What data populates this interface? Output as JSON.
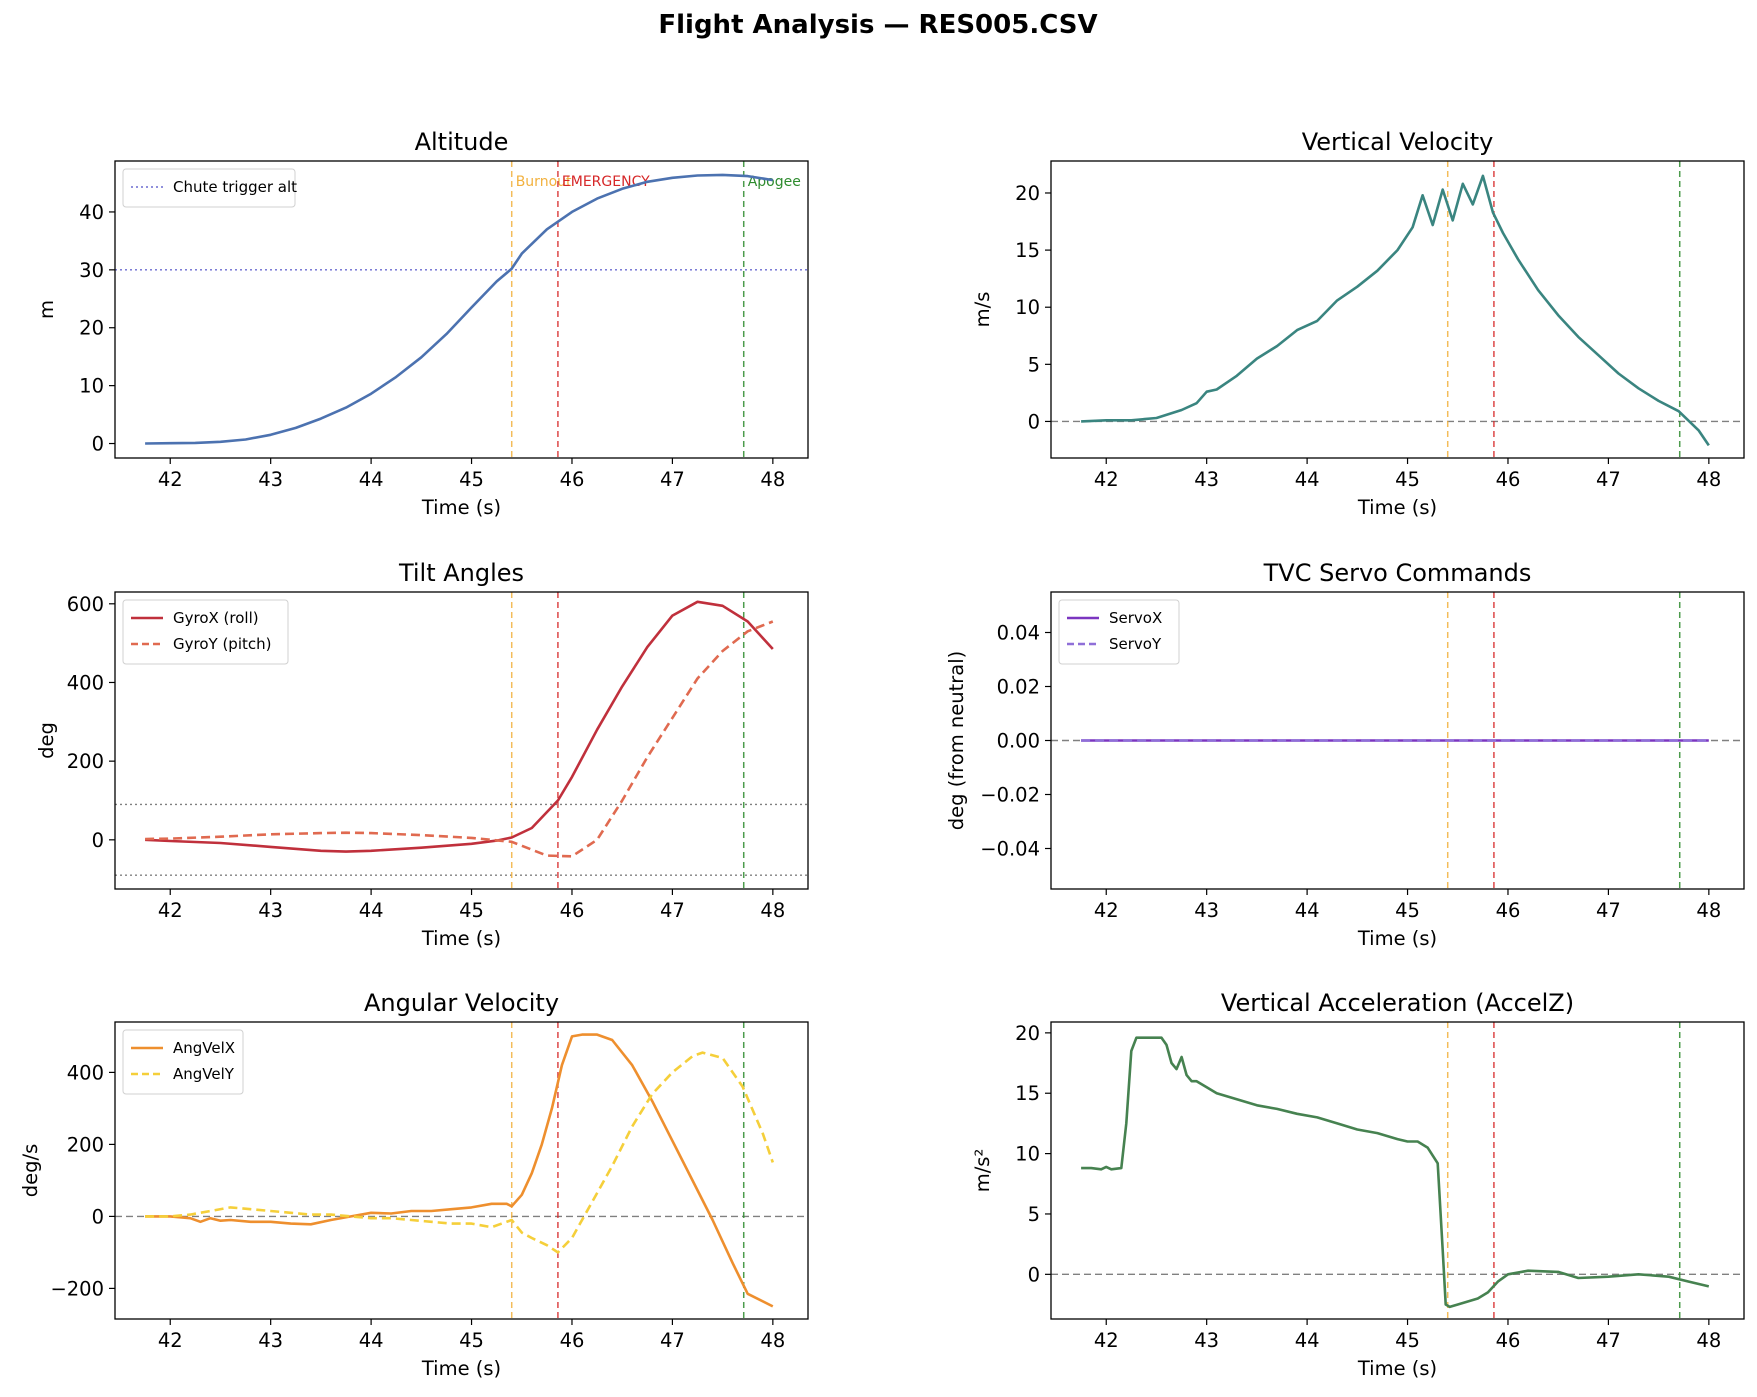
{
  "figure": {
    "suptitle": "Flight Analysis — RES005.CSV"
  },
  "chart_data": [
    {
      "type": "line",
      "title": "Altitude",
      "xlabel": "Time (s)",
      "ylabel": "m",
      "xlim": [
        41.45,
        48.35
      ],
      "ylim": [
        -2.5,
        48.8
      ],
      "xticks": [
        42,
        43,
        44,
        45,
        46,
        47,
        48
      ],
      "yticks": [
        0,
        10,
        20,
        30,
        40
      ],
      "grid": false,
      "legend": {
        "placement": "upper-left",
        "entries": [
          {
            "label": "Chute trigger alt",
            "color": "#6b6bd0",
            "style": "dotted"
          }
        ]
      },
      "hlines": [
        {
          "y": 30,
          "color": "#6b6bd0",
          "style": "dotted"
        }
      ],
      "vlines": [
        {
          "x": 45.4,
          "color": "#f2b13e",
          "label": "Burnout"
        },
        {
          "x": 45.86,
          "color": "#d62728",
          "label": "EMERGENCY"
        },
        {
          "x": 47.71,
          "color": "#2e8b2e",
          "label": "Apogee"
        }
      ],
      "series": [
        {
          "color": "#4c72b0",
          "style": "solid",
          "x": [
            41.75,
            42.0,
            42.25,
            42.5,
            42.75,
            43.0,
            43.25,
            43.5,
            43.75,
            44.0,
            44.25,
            44.5,
            44.75,
            45.0,
            45.25,
            45.4,
            45.5,
            45.75,
            46.0,
            46.25,
            46.5,
            46.75,
            47.0,
            47.25,
            47.5,
            47.75,
            48.0
          ],
          "y": [
            0,
            0.05,
            0.1,
            0.3,
            0.7,
            1.5,
            2.7,
            4.3,
            6.2,
            8.6,
            11.5,
            14.9,
            18.9,
            23.5,
            28.0,
            30.2,
            32.8,
            37.0,
            40.0,
            42.3,
            44.0,
            45.2,
            45.9,
            46.3,
            46.4,
            46.2,
            45.5
          ]
        }
      ]
    },
    {
      "type": "line",
      "title": "Vertical Velocity",
      "xlabel": "Time (s)",
      "ylabel": "m/s",
      "xlim": [
        41.45,
        48.35
      ],
      "ylim": [
        -3.2,
        22.8
      ],
      "xticks": [
        42,
        43,
        44,
        45,
        46,
        47,
        48
      ],
      "yticks": [
        0,
        5,
        10,
        15,
        20
      ],
      "grid": false,
      "hlines": [
        {
          "y": 0,
          "color": "#808080",
          "style": "dashed"
        }
      ],
      "vlines": [
        {
          "x": 45.4,
          "color": "#f2b13e"
        },
        {
          "x": 45.86,
          "color": "#d62728"
        },
        {
          "x": 47.71,
          "color": "#2e8b2e"
        }
      ],
      "series": [
        {
          "color": "#3a8580",
          "style": "solid",
          "x": [
            41.75,
            42.0,
            42.25,
            42.5,
            42.75,
            42.9,
            43.0,
            43.1,
            43.3,
            43.5,
            43.7,
            43.9,
            44.1,
            44.3,
            44.5,
            44.7,
            44.9,
            45.05,
            45.15,
            45.25,
            45.35,
            45.45,
            45.55,
            45.65,
            45.75,
            45.85,
            45.95,
            46.1,
            46.3,
            46.5,
            46.7,
            46.9,
            47.1,
            47.3,
            47.5,
            47.7,
            47.9,
            48.0
          ],
          "y": [
            0,
            0.1,
            0.1,
            0.3,
            1.0,
            1.6,
            2.6,
            2.8,
            4.0,
            5.5,
            6.6,
            8.0,
            8.8,
            10.6,
            11.8,
            13.2,
            15.0,
            17.0,
            19.8,
            17.2,
            20.3,
            17.6,
            20.8,
            19.0,
            21.5,
            18.3,
            16.5,
            14.2,
            11.5,
            9.3,
            7.4,
            5.8,
            4.2,
            2.9,
            1.8,
            0.9,
            -0.8,
            -2.1
          ]
        }
      ]
    },
    {
      "type": "line",
      "title": "Tilt Angles",
      "xlabel": "Time (s)",
      "ylabel": "deg",
      "xlim": [
        41.45,
        48.35
      ],
      "ylim": [
        -125,
        630
      ],
      "xticks": [
        42,
        43,
        44,
        45,
        46,
        47,
        48
      ],
      "yticks": [
        0,
        200,
        400,
        600
      ],
      "grid": false,
      "legend": {
        "placement": "upper-left",
        "entries": [
          {
            "label": "GyroX (roll)",
            "color": "#c0303c",
            "style": "solid"
          },
          {
            "label": "GyroY (pitch)",
            "color": "#e06a50",
            "style": "dashed"
          }
        ]
      },
      "hlines": [
        {
          "y": 90,
          "color": "#808080",
          "style": "dotted"
        },
        {
          "y": -90,
          "color": "#808080",
          "style": "dotted"
        }
      ],
      "vlines": [
        {
          "x": 45.4,
          "color": "#f2b13e"
        },
        {
          "x": 45.86,
          "color": "#d62728"
        },
        {
          "x": 47.71,
          "color": "#2e8b2e"
        }
      ],
      "series": [
        {
          "name": "GyroX (roll)",
          "color": "#c0303c",
          "style": "solid",
          "x": [
            41.75,
            42.0,
            42.5,
            43.0,
            43.5,
            43.75,
            44.0,
            44.5,
            45.0,
            45.25,
            45.4,
            45.6,
            45.86,
            46.0,
            46.25,
            46.5,
            46.75,
            47.0,
            47.25,
            47.5,
            47.75,
            48.0
          ],
          "y": [
            0,
            -3,
            -8,
            -18,
            -28,
            -30,
            -28,
            -20,
            -10,
            -2,
            6,
            30,
            100,
            160,
            280,
            390,
            490,
            570,
            605,
            595,
            555,
            485
          ]
        },
        {
          "name": "GyroY (pitch)",
          "color": "#e06a50",
          "style": "dashed",
          "x": [
            41.75,
            42.0,
            42.5,
            43.0,
            43.5,
            43.75,
            44.0,
            44.5,
            45.0,
            45.4,
            45.75,
            46.0,
            46.25,
            46.5,
            46.75,
            47.0,
            47.25,
            47.5,
            47.75,
            48.0
          ],
          "y": [
            2,
            3,
            8,
            14,
            17,
            18,
            17,
            12,
            5,
            -5,
            -40,
            -42,
            0,
            100,
            210,
            310,
            410,
            480,
            530,
            555
          ]
        }
      ]
    },
    {
      "type": "line",
      "title": "TVC Servo Commands",
      "xlabel": "Time (s)",
      "ylabel": "deg (from neutral)",
      "xlim": [
        41.45,
        48.35
      ],
      "ylim": [
        -0.055,
        0.055
      ],
      "xticks": [
        42,
        43,
        44,
        45,
        46,
        47,
        48
      ],
      "yticks": [
        0.04,
        0.02,
        0.0,
        -0.02,
        -0.04
      ],
      "ytick_labels": [
        "0.04",
        "0.02",
        "0.00",
        "−0.02",
        "−0.04"
      ],
      "grid": false,
      "legend": {
        "placement": "upper-left",
        "entries": [
          {
            "label": "ServoX",
            "color": "#7b35c0",
            "style": "solid"
          },
          {
            "label": "ServoY",
            "color": "#8f6fd8",
            "style": "dashed"
          }
        ]
      },
      "hlines": [
        {
          "y": 0,
          "color": "#808080",
          "style": "dashed"
        }
      ],
      "vlines": [
        {
          "x": 45.4,
          "color": "#f2b13e"
        },
        {
          "x": 45.86,
          "color": "#d62728"
        },
        {
          "x": 47.71,
          "color": "#2e8b2e"
        }
      ],
      "series": [
        {
          "name": "ServoX",
          "color": "#7b35c0",
          "style": "solid",
          "x": [
            41.75,
            48.0
          ],
          "y": [
            0,
            0
          ]
        },
        {
          "name": "ServoY",
          "color": "#8f6fd8",
          "style": "dashed",
          "x": [
            41.75,
            48.0
          ],
          "y": [
            0,
            0
          ]
        }
      ]
    },
    {
      "type": "line",
      "title": "Angular Velocity",
      "xlabel": "Time (s)",
      "ylabel": "deg/s",
      "xlim": [
        41.45,
        48.35
      ],
      "ylim": [
        -285,
        540
      ],
      "xticks": [
        42,
        43,
        44,
        45,
        46,
        47,
        48
      ],
      "yticks": [
        400,
        200,
        0,
        -200
      ],
      "ytick_labels": [
        "400",
        "200",
        "0",
        "−200"
      ],
      "grid": false,
      "legend": {
        "placement": "upper-left",
        "entries": [
          {
            "label": "AngVelX",
            "color": "#ee8f2e",
            "style": "solid"
          },
          {
            "label": "AngVelY",
            "color": "#f5cf3a",
            "style": "dashed"
          }
        ]
      },
      "hlines": [
        {
          "y": 0,
          "color": "#808080",
          "style": "dashed"
        }
      ],
      "vlines": [
        {
          "x": 45.4,
          "color": "#f2b13e"
        },
        {
          "x": 45.86,
          "color": "#d62728"
        },
        {
          "x": 47.71,
          "color": "#2e8b2e"
        }
      ],
      "series": [
        {
          "name": "AngVelX",
          "color": "#ee8f2e",
          "style": "solid",
          "x": [
            41.75,
            42.0,
            42.2,
            42.3,
            42.4,
            42.5,
            42.6,
            42.8,
            43.0,
            43.2,
            43.4,
            43.6,
            43.8,
            44.0,
            44.2,
            44.4,
            44.6,
            44.8,
            45.0,
            45.2,
            45.35,
            45.4,
            45.5,
            45.6,
            45.7,
            45.8,
            45.9,
            46.0,
            46.1,
            46.25,
            46.4,
            46.6,
            46.8,
            47.0,
            47.2,
            47.4,
            47.6,
            47.75,
            48.0
          ],
          "y": [
            0,
            0,
            -5,
            -15,
            -5,
            -12,
            -10,
            -15,
            -15,
            -20,
            -22,
            -10,
            0,
            10,
            8,
            15,
            15,
            20,
            25,
            35,
            35,
            28,
            60,
            120,
            200,
            300,
            420,
            500,
            505,
            505,
            490,
            420,
            320,
            210,
            100,
            -10,
            -130,
            -215,
            -250
          ]
        },
        {
          "name": "AngVelY",
          "color": "#f5cf3a",
          "style": "dashed",
          "x": [
            41.75,
            42.0,
            42.2,
            42.4,
            42.6,
            42.8,
            43.0,
            43.2,
            43.4,
            43.6,
            43.8,
            44.0,
            44.2,
            44.4,
            44.6,
            44.8,
            45.0,
            45.2,
            45.4,
            45.5,
            45.6,
            45.75,
            45.86,
            46.0,
            46.2,
            46.4,
            46.6,
            46.8,
            47.0,
            47.2,
            47.3,
            47.5,
            47.7,
            47.9,
            48.0
          ],
          "y": [
            0,
            0,
            5,
            15,
            25,
            20,
            15,
            10,
            5,
            5,
            0,
            -5,
            -5,
            -10,
            -15,
            -20,
            -20,
            -30,
            -10,
            -45,
            -60,
            -80,
            -100,
            -60,
            40,
            140,
            250,
            340,
            400,
            445,
            455,
            440,
            360,
            230,
            150
          ]
        }
      ]
    },
    {
      "type": "line",
      "title": "Vertical Acceleration (AccelZ)",
      "xlabel": "Time (s)",
      "ylabel": "m/s²",
      "xlim": [
        41.45,
        48.35
      ],
      "ylim": [
        -3.7,
        20.9
      ],
      "xticks": [
        42,
        43,
        44,
        45,
        46,
        47,
        48
      ],
      "yticks": [
        0,
        5,
        10,
        15,
        20
      ],
      "grid": false,
      "hlines": [
        {
          "y": 0,
          "color": "#808080",
          "style": "dashed"
        }
      ],
      "vlines": [
        {
          "x": 45.4,
          "color": "#f2b13e"
        },
        {
          "x": 45.86,
          "color": "#d62728"
        },
        {
          "x": 47.71,
          "color": "#2e8b2e"
        }
      ],
      "series": [
        {
          "color": "#468250",
          "style": "solid",
          "x": [
            41.75,
            41.85,
            41.95,
            42.0,
            42.05,
            42.15,
            42.2,
            42.25,
            42.3,
            42.45,
            42.55,
            42.6,
            42.65,
            42.7,
            42.75,
            42.8,
            42.85,
            42.9,
            43.0,
            43.1,
            43.3,
            43.5,
            43.7,
            43.9,
            44.1,
            44.3,
            44.5,
            44.7,
            44.9,
            45.0,
            45.1,
            45.2,
            45.3,
            45.35,
            45.38,
            45.42,
            45.5,
            45.7,
            45.8,
            45.9,
            46.0,
            46.2,
            46.5,
            46.7,
            47.0,
            47.3,
            47.6,
            47.8,
            48.0
          ],
          "y": [
            8.8,
            8.8,
            8.7,
            8.9,
            8.7,
            8.8,
            12.5,
            18.5,
            19.6,
            19.6,
            19.6,
            19.0,
            17.5,
            17.0,
            18.0,
            16.5,
            16.0,
            16.0,
            15.5,
            15.0,
            14.5,
            14.0,
            13.7,
            13.3,
            13.0,
            12.5,
            12.0,
            11.7,
            11.2,
            11.0,
            11.0,
            10.5,
            9.2,
            2.0,
            -2.5,
            -2.7,
            -2.5,
            -2.0,
            -1.5,
            -0.6,
            0.0,
            0.3,
            0.2,
            -0.3,
            -0.2,
            0.0,
            -0.2,
            -0.6,
            -1.0
          ]
        }
      ]
    }
  ]
}
